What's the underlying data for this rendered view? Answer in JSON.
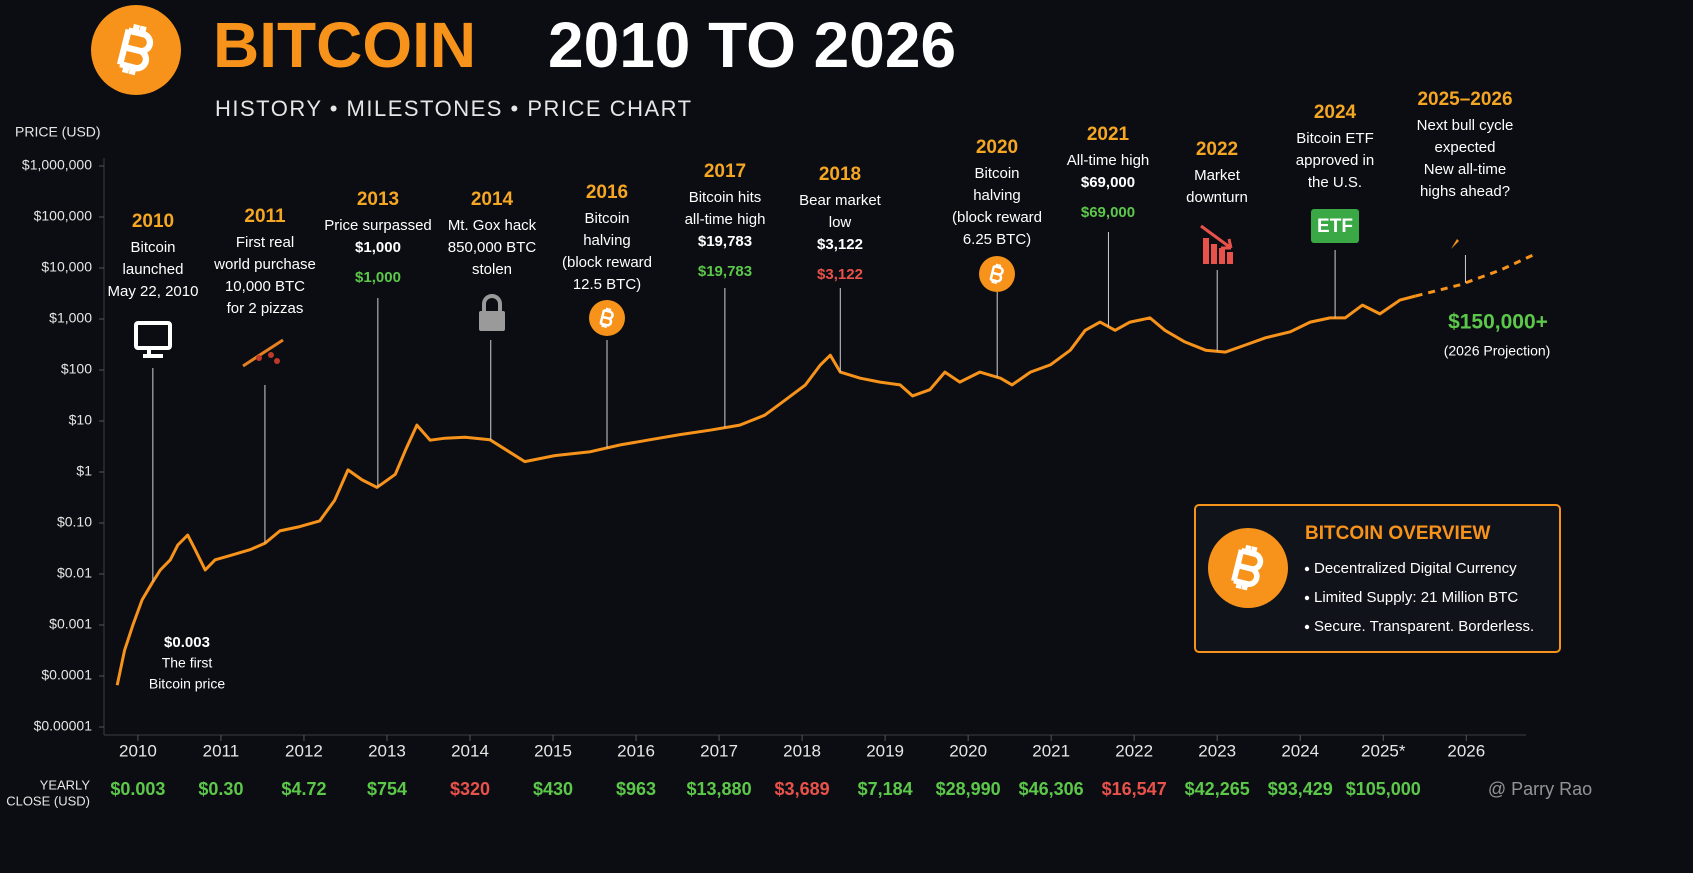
{
  "chart_data": {
    "type": "line",
    "title_highlight": "BITCOIN",
    "title_rest": "2010 TO 2026",
    "subtitle": "HISTORY • MILESTONES • PRICE CHART",
    "y_label": "PRICE (USD)",
    "log_scale": true,
    "xlim": [
      2009.7,
      2026.9
    ],
    "xticks": [
      2010,
      2011,
      2012,
      2013,
      2014,
      2015,
      2016,
      2017,
      2018,
      2019,
      2020,
      2021,
      2022,
      2023,
      2024,
      {
        "value": 2025,
        "label": "2025*"
      },
      2026
    ],
    "ylim": [
      1e-05,
      1000000
    ],
    "yticks": [
      {
        "value": 1000000,
        "label": "$1,000,000"
      },
      {
        "value": 100000,
        "label": "$100,000"
      },
      {
        "value": 10000,
        "label": "$10,000"
      },
      {
        "value": 1000,
        "label": "$1,000"
      },
      {
        "value": 100,
        "label": "$100"
      },
      {
        "value": 10,
        "label": "$10"
      },
      {
        "value": 1,
        "label": "$1"
      },
      {
        "value": 0.1,
        "label": "$0.10"
      },
      {
        "value": 0.01,
        "label": "$0.01"
      },
      {
        "value": 0.001,
        "label": "$0.001"
      },
      {
        "value": 0.0001,
        "label": "$0.0001"
      },
      {
        "value": 1e-05,
        "label": "$0.00001"
      }
    ],
    "series": [
      {
        "color": "#f7931a",
        "dashed": false,
        "x": [
          2009.75,
          2009.84,
          2009.94,
          2010.05,
          2010.17,
          2010.27,
          2010.39,
          2010.48,
          2010.6,
          2010.69,
          2010.81,
          2010.93,
          2011.11,
          2011.35,
          2011.53,
          2011.71,
          2011.95,
          2012.19,
          2012.37,
          2012.53,
          2012.7,
          2012.88,
          2013.1,
          2013.22,
          2013.36,
          2013.52,
          2013.7,
          2013.94,
          2014.24,
          2014.66,
          2015.02,
          2015.45,
          2015.81,
          2016.17,
          2016.53,
          2016.89,
          2017.25,
          2017.55,
          2017.8,
          2018.04,
          2018.22,
          2018.34,
          2018.46,
          2018.7,
          2018.94,
          2019.18,
          2019.33,
          2019.54,
          2019.72,
          2019.9,
          2020.14,
          2020.39,
          2020.53,
          2020.75,
          2020.99,
          2021.23,
          2021.41,
          2021.59,
          2021.77,
          2021.95,
          2022.19,
          2022.37,
          2022.61,
          2022.86,
          2023.1,
          2023.34,
          2023.58,
          2023.88,
          2024.12,
          2024.36,
          2024.54,
          2024.75,
          2024.96,
          2025.2,
          2025.39
        ],
        "values": [
          6.6e-05,
          0.00032,
          0.001,
          0.0031,
          0.0066,
          0.012,
          0.019,
          0.037,
          0.058,
          0.03,
          0.012,
          0.019,
          0.023,
          0.03,
          0.04,
          0.07,
          0.085,
          0.11,
          0.28,
          1.1,
          0.7,
          0.5,
          0.9,
          2.6,
          8.3,
          4.2,
          4.6,
          4.8,
          4.3,
          1.6,
          2.1,
          2.5,
          3.4,
          4.3,
          5.4,
          6.6,
          8.3,
          13,
          26,
          51,
          126,
          195,
          91,
          69,
          58,
          51,
          31,
          41,
          91,
          58,
          91,
          69,
          51,
          91,
          126,
          245,
          600,
          870,
          600,
          870,
          1050,
          600,
          355,
          245,
          224,
          309,
          427,
          560,
          870,
          1050,
          1050,
          1870,
          1260,
          2350,
          2820
        ]
      },
      {
        "color": "#f7931a",
        "dashed": true,
        "x": [
          2025.39,
          2025.93,
          2026.41,
          2026.8
        ],
        "values": [
          2820,
          4700,
          9100,
          17800
        ]
      }
    ],
    "annotations": [
      {
        "year": "2010",
        "x": 2010.18,
        "lines": [
          "Bitcoin",
          "launched",
          "May 22, 2010"
        ]
      },
      {
        "year": "2011",
        "x": 2011.53,
        "lines": [
          "First real",
          "world purchase",
          "10,000 BTC",
          "for 2 pizzas"
        ]
      },
      {
        "year": "2013",
        "x": 2012.89,
        "lines": [
          "Price surpassed",
          "$1,000"
        ],
        "price_label": "$1,000",
        "price_color": "#5cc84a"
      },
      {
        "year": "2014",
        "x": 2014.25,
        "lines": [
          "Mt. Gox hack",
          "850,000 BTC",
          "stolen"
        ]
      },
      {
        "year": "2016",
        "x": 2015.65,
        "lines": [
          "Bitcoin",
          "halving",
          "(block reward",
          "12.5 BTC)"
        ]
      },
      {
        "year": "2017",
        "x": 2017.07,
        "lines": [
          "Bitcoin hits",
          "all-time high",
          "$19,783"
        ],
        "price_label": "$19,783",
        "price_color": "#5cc84a"
      },
      {
        "year": "2018",
        "x": 2018.46,
        "lines": [
          "Bear market",
          "low",
          "$3,122"
        ],
        "price_label": "$3,122",
        "price_color": "#e8524a"
      },
      {
        "year": "2020",
        "x": 2020.35,
        "lines": [
          "Bitcoin",
          "halving",
          "(block reward",
          "6.25 BTC)"
        ]
      },
      {
        "year": "2021",
        "x": 2021.69,
        "lines": [
          "All-time high",
          "$69,000"
        ],
        "price_label": "$69,000",
        "price_color": "#5cc84a"
      },
      {
        "year": "2022",
        "x": 2023.0,
        "lines": [
          "Market",
          "downturn"
        ]
      },
      {
        "year": "2024",
        "x": 2024.42,
        "lines": [
          "Bitcoin ETF",
          "approved in",
          "the U.S."
        ],
        "badge": "ETF"
      },
      {
        "year": "2025–2026",
        "x": 2025.99,
        "lines": [
          "Next bull cycle",
          "expected",
          "New all-time",
          "highs ahead?"
        ]
      }
    ],
    "first_price_note": [
      "$0.003",
      "The first",
      "Bitcoin price"
    ],
    "projection_value": "$150,000+",
    "projection_note": "(2026 Projection)",
    "yearly_close": {
      "label": [
        "YEARLY",
        "CLOSE (USD)"
      ],
      "values": [
        0.003,
        0.3,
        4.72,
        754,
        320,
        430,
        963,
        13880,
        3689,
        7184,
        28990,
        46306,
        16547,
        42265,
        93429,
        105000
      ],
      "value_labels": [
        "$0.003",
        "$0.30",
        "$4.72",
        "$754",
        "$320",
        "$430",
        "$963",
        "$13,880",
        "$3,689",
        "$7,184",
        "$28,990",
        "$46,306",
        "$16,547",
        "$42,265",
        "$93,429",
        "$105,000"
      ],
      "up_color": "#5cc84a",
      "down_color": "#e8524a"
    },
    "overview": {
      "title": "BITCOIN OVERVIEW",
      "items": [
        "Decentralized Digital Currency",
        "Limited Supply: 21 Million BTC",
        "Secure. Transparent. Borderless."
      ]
    },
    "watermark": "@ Parry Rao"
  }
}
